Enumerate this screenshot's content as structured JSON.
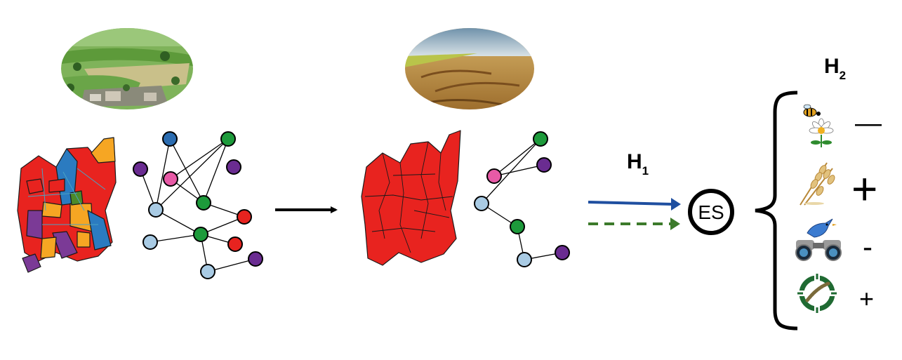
{
  "labels": {
    "h1": "H",
    "h1_sub": "1",
    "h2": "H",
    "h2_sub": "2",
    "es": "ES"
  },
  "ecosystem_services": [
    {
      "icon": "bee-flower-icon",
      "sign": "—"
    },
    {
      "icon": "wheat-icon",
      "sign": "+"
    },
    {
      "icon": "bird-binoculars-icon",
      "sign": "-"
    },
    {
      "icon": "pest-target-icon",
      "sign": "+"
    }
  ],
  "colors": {
    "arrow_solid": "#1f4fa0",
    "arrow_dashed": "#3c7a2b",
    "patch_red": "#e8231f",
    "patch_orange": "#f6a623",
    "patch_blue": "#2b7bc0",
    "patch_purple": "#7b3a96",
    "patch_green": "#4c8a2a",
    "node_blue": "#2b6cb0",
    "node_green": "#1d9a3b",
    "node_purple": "#6a2c91",
    "node_pink": "#e75aa6",
    "node_light": "#a9cbe4",
    "node_red": "#e8231f"
  }
}
